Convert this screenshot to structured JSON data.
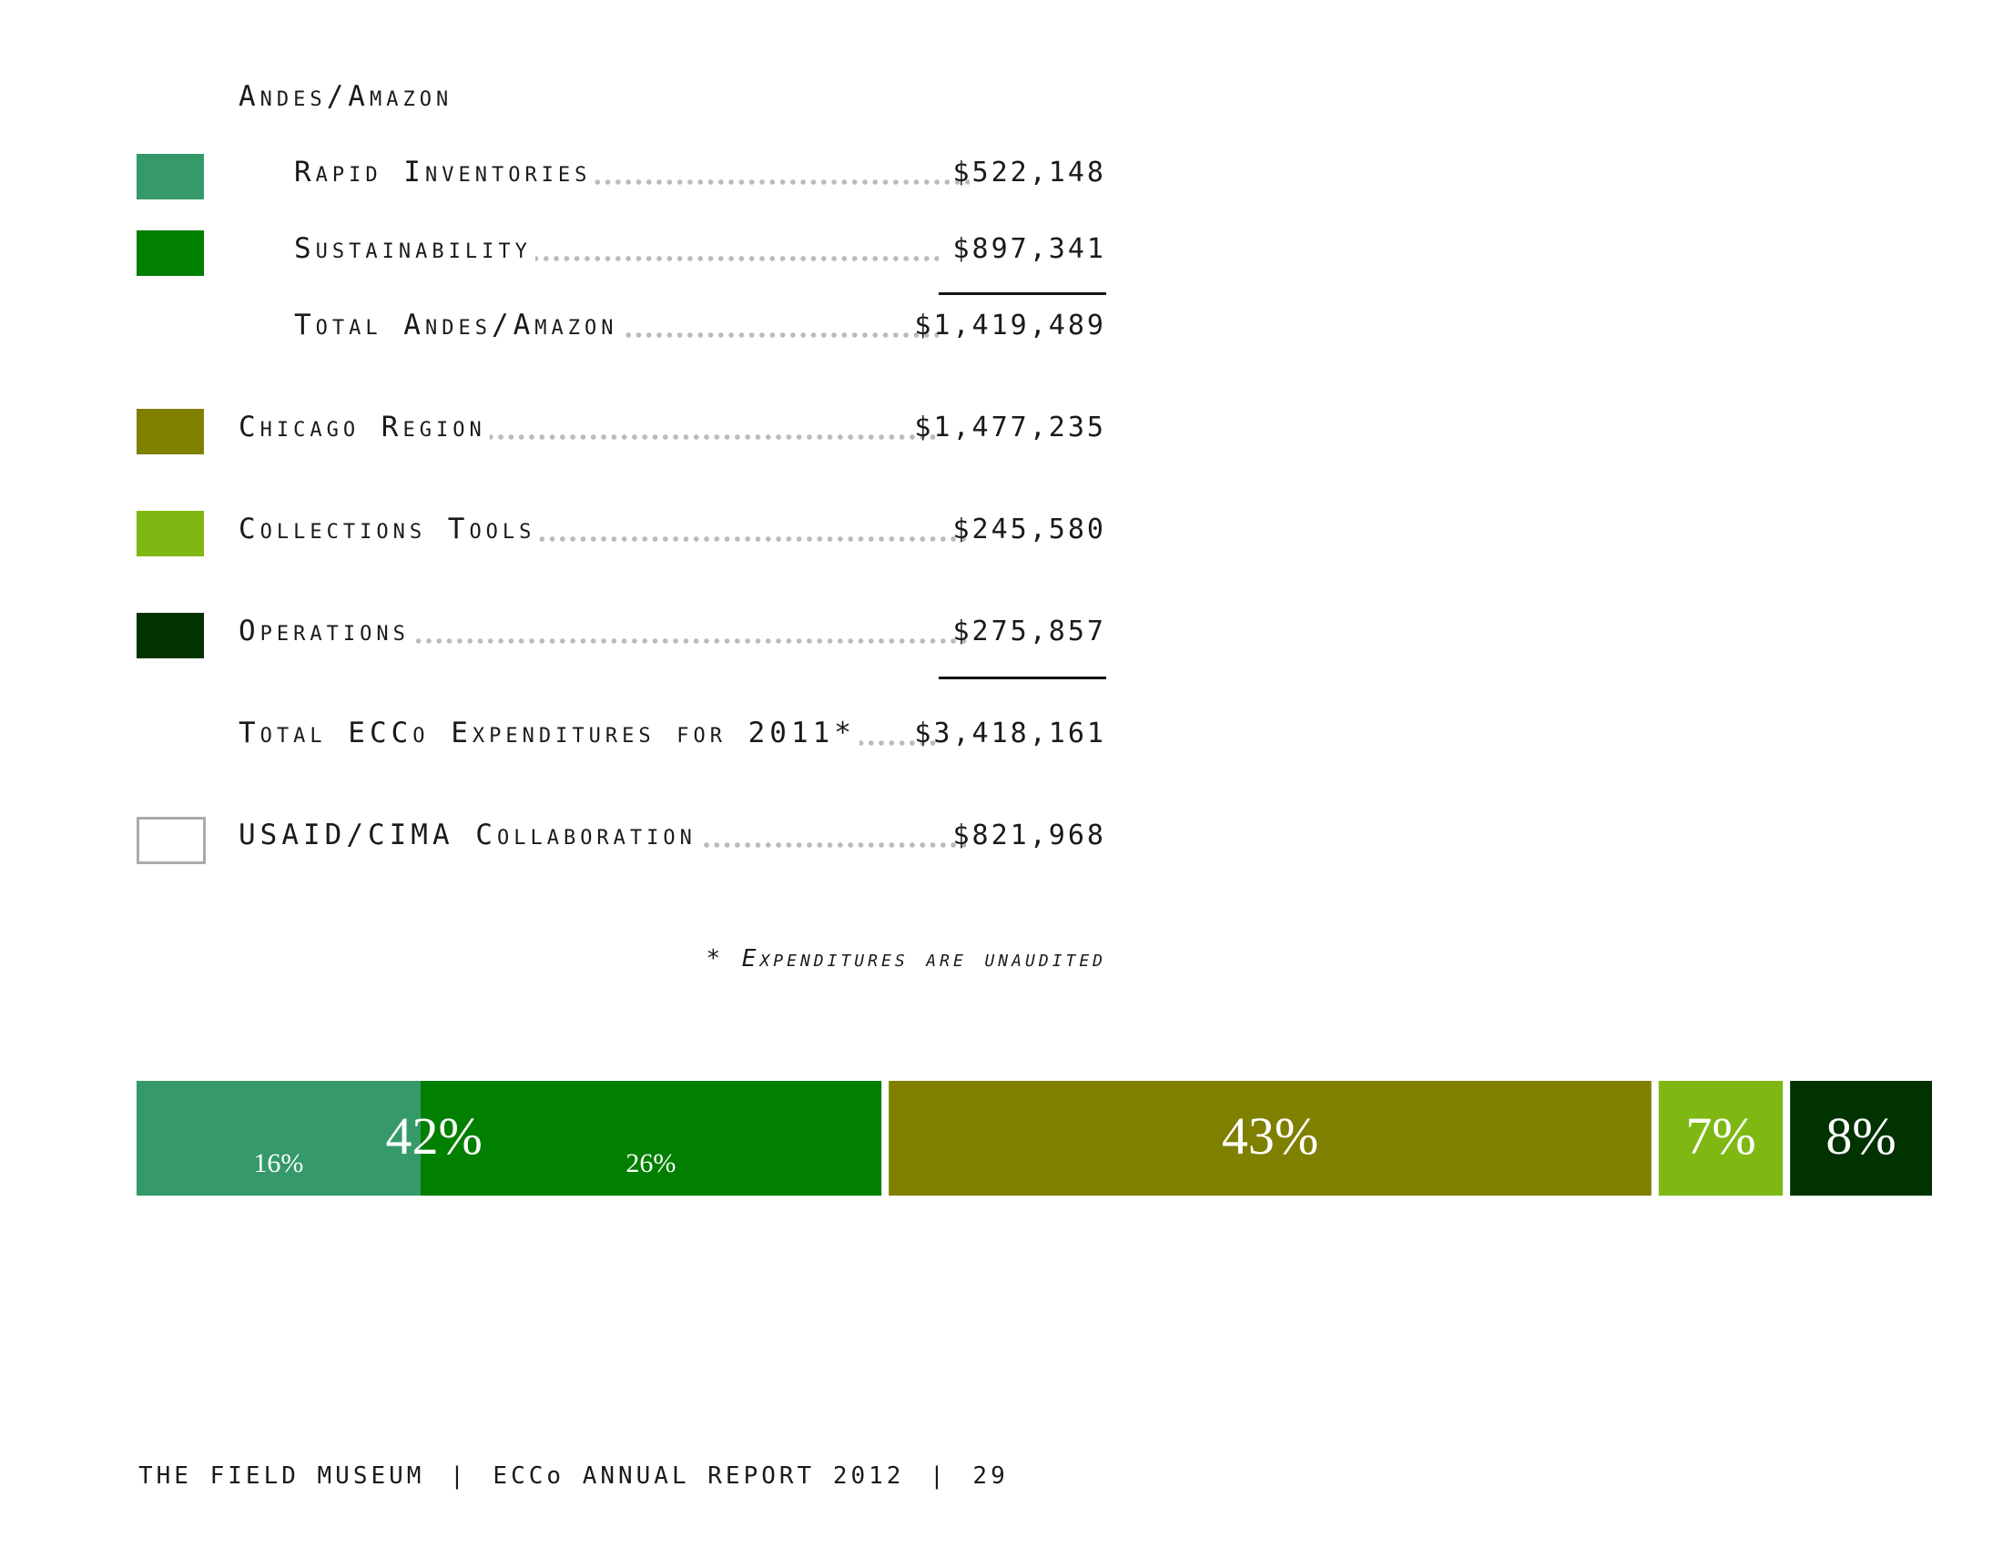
{
  "section_title": "Andes/Amazon",
  "rows": [
    {
      "label": "Rapid Inventories",
      "value": "$522,148",
      "color": "#35996a"
    },
    {
      "label": "Sustainability",
      "value": "$897,341",
      "color": "#007f00"
    },
    {
      "label": "Total Andes/Amazon",
      "value": "$1,419,489"
    },
    {
      "label": "Chicago Region",
      "value": "$1,477,235",
      "color": "#7f7f00"
    },
    {
      "label": "Collections Tools",
      "value": "$245,580",
      "color": "#7fb812"
    },
    {
      "label": "Operations",
      "value": "$275,857",
      "color": "#003300"
    },
    {
      "label": "Total ECCo Expenditures for 2011*",
      "value": "$3,418,161"
    },
    {
      "label": "USAID/CIMA Collaboration",
      "value": "$821,968",
      "color": "#ffffff"
    }
  ],
  "footnote": "* Expenditures are unaudited",
  "footer": {
    "org": "THE FIELD MUSEUM",
    "report": "ECCo ANNUAL REPORT 2012",
    "page": "29",
    "separator": "|"
  },
  "chart_data": {
    "type": "bar",
    "orientation": "horizontal-stacked",
    "groups": [
      {
        "label": "42%",
        "segments": [
          {
            "name": "Rapid Inventories",
            "value": 16,
            "label": "16%",
            "color": "#35996a"
          },
          {
            "name": "Sustainability",
            "value": 26,
            "label": "26%",
            "color": "#007f00"
          }
        ]
      },
      {
        "label": "43%",
        "segments": [
          {
            "name": "Chicago Region",
            "value": 43,
            "color": "#7f7f00"
          }
        ]
      },
      {
        "label": "7%",
        "segments": [
          {
            "name": "Collections Tools",
            "value": 7,
            "color": "#7fb812"
          }
        ]
      },
      {
        "label": "8%",
        "segments": [
          {
            "name": "Operations",
            "value": 8,
            "color": "#003300"
          }
        ]
      }
    ]
  }
}
